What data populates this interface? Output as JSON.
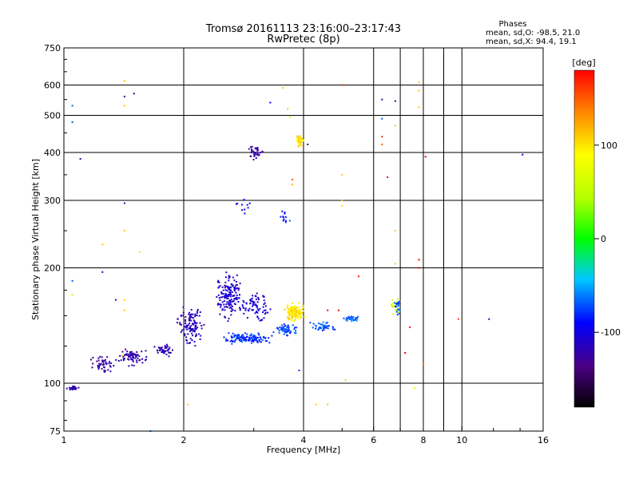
{
  "header": {
    "title": "Tromsø 20161113 23:16:00–23:17:43",
    "subtitle": "RwPretec (8p)",
    "phases_title": "Phases",
    "phases_o": "mean, sd,O:  -98.5, 21.0",
    "phases_x": "mean, sd,X:  94.4, 19.1"
  },
  "chart_data": {
    "type": "scatter",
    "title": "Tromsø 20161113 23:16:00–23:17:43",
    "subtitle": "RwPretec (8p)",
    "xlabel": "Frequency [MHz]",
    "ylabel": "Stationary phase Virtual Height [km]",
    "xscale": "log",
    "yscale": "log",
    "xlim": [
      1,
      16
    ],
    "ylim": [
      75,
      750
    ],
    "xticks": [
      1,
      2,
      4,
      6,
      8,
      10,
      16
    ],
    "xtick_labels": [
      "1",
      "2",
      "4",
      "6",
      "8",
      "10",
      "16"
    ],
    "yticks": [
      75,
      100,
      200,
      300,
      400,
      500,
      600,
      750
    ],
    "ytick_labels": [
      "75",
      "100",
      "200",
      "300",
      "400",
      "500",
      "600",
      "750"
    ],
    "grid": true,
    "colorbar": {
      "label": "[deg]",
      "range": [
        -180,
        180
      ],
      "ticks": [
        -100,
        0,
        100
      ],
      "tick_labels": [
        "-100",
        "0",
        "100"
      ]
    },
    "clusters": [
      {
        "x": 1.05,
        "y": 97,
        "dx": 0.05,
        "dy": 2,
        "phase": -120,
        "n": 25
      },
      {
        "x": 1.25,
        "y": 112,
        "dx": 0.1,
        "dy": 7,
        "phase": -125,
        "n": 45
      },
      {
        "x": 1.5,
        "y": 117,
        "dx": 0.15,
        "dy": 7,
        "phase": -120,
        "n": 70
      },
      {
        "x": 1.8,
        "y": 122,
        "dx": 0.15,
        "dy": 5,
        "phase": -118,
        "n": 40
      },
      {
        "x": 2.1,
        "y": 140,
        "dx": 0.2,
        "dy": 20,
        "phase": -115,
        "n": 110
      },
      {
        "x": 2.6,
        "y": 170,
        "dx": 0.25,
        "dy": 28,
        "phase": -110,
        "n": 160
      },
      {
        "x": 3.0,
        "y": 160,
        "dx": 0.35,
        "dy": 20,
        "phase": -105,
        "n": 80
      },
      {
        "x": 2.9,
        "y": 131,
        "dx": 0.5,
        "dy": 5,
        "phase": -80,
        "n": 130
      },
      {
        "x": 3.6,
        "y": 138,
        "dx": 0.3,
        "dy": 6,
        "phase": -75,
        "n": 60
      },
      {
        "x": 3.8,
        "y": 153,
        "dx": 0.25,
        "dy": 10,
        "phase": 100,
        "n": 140
      },
      {
        "x": 4.5,
        "y": 140,
        "dx": 0.45,
        "dy": 5,
        "phase": -70,
        "n": 45
      },
      {
        "x": 5.3,
        "y": 147,
        "dx": 0.3,
        "dy": 3,
        "phase": -65,
        "n": 30
      },
      {
        "x": 6.8,
        "y": 160,
        "dx": 0.2,
        "dy": 12,
        "phase": 60,
        "n": 25
      },
      {
        "x": 6.9,
        "y": 158,
        "dx": 0.2,
        "dy": 10,
        "phase": -70,
        "n": 20
      },
      {
        "x": 3.05,
        "y": 400,
        "dx": 0.18,
        "dy": 20,
        "phase": -125,
        "n": 40
      },
      {
        "x": 3.9,
        "y": 430,
        "dx": 0.12,
        "dy": 20,
        "phase": 100,
        "n": 40
      },
      {
        "x": 3.6,
        "y": 270,
        "dx": 0.15,
        "dy": 25,
        "phase": -85,
        "n": 12
      },
      {
        "x": 2.8,
        "y": 290,
        "dx": 0.2,
        "dy": 20,
        "phase": -95,
        "n": 10
      }
    ],
    "outliers": [
      {
        "x": 1.05,
        "y": 530,
        "phase": -70
      },
      {
        "x": 1.05,
        "y": 480,
        "phase": -70
      },
      {
        "x": 1.1,
        "y": 385,
        "phase": -120
      },
      {
        "x": 1.42,
        "y": 615,
        "phase": 110
      },
      {
        "x": 1.42,
        "y": 530,
        "phase": 110
      },
      {
        "x": 1.42,
        "y": 560,
        "phase": -115
      },
      {
        "x": 1.5,
        "y": 570,
        "phase": -120
      },
      {
        "x": 1.42,
        "y": 295,
        "phase": -120
      },
      {
        "x": 1.42,
        "y": 250,
        "phase": 110
      },
      {
        "x": 1.25,
        "y": 230,
        "phase": 110
      },
      {
        "x": 1.25,
        "y": 195,
        "phase": -100
      },
      {
        "x": 1.55,
        "y": 220,
        "phase": 50
      },
      {
        "x": 1.05,
        "y": 185,
        "phase": -70
      },
      {
        "x": 1.05,
        "y": 170,
        "phase": 50
      },
      {
        "x": 1.42,
        "y": 155,
        "phase": 110
      },
      {
        "x": 1.42,
        "y": 165,
        "phase": 110
      },
      {
        "x": 1.35,
        "y": 165,
        "phase": -110
      },
      {
        "x": 1.65,
        "y": 75,
        "phase": -60
      },
      {
        "x": 2.05,
        "y": 88,
        "phase": 110
      },
      {
        "x": 3.55,
        "y": 590,
        "phase": 110
      },
      {
        "x": 3.65,
        "y": 520,
        "phase": 110
      },
      {
        "x": 3.7,
        "y": 495,
        "phase": 100
      },
      {
        "x": 3.3,
        "y": 540,
        "phase": -90
      },
      {
        "x": 3.75,
        "y": 340,
        "phase": 150
      },
      {
        "x": 3.75,
        "y": 330,
        "phase": 120
      },
      {
        "x": 4.1,
        "y": 420,
        "phase": -140
      },
      {
        "x": 5.0,
        "y": 600,
        "phase": 170
      },
      {
        "x": 5.0,
        "y": 350,
        "phase": 110
      },
      {
        "x": 5.0,
        "y": 300,
        "phase": 110
      },
      {
        "x": 5.0,
        "y": 290,
        "phase": 100
      },
      {
        "x": 5.5,
        "y": 190,
        "phase": 180
      },
      {
        "x": 6.3,
        "y": 550,
        "phase": -120
      },
      {
        "x": 6.3,
        "y": 490,
        "phase": -70
      },
      {
        "x": 6.3,
        "y": 440,
        "phase": 170
      },
      {
        "x": 6.3,
        "y": 420,
        "phase": 150
      },
      {
        "x": 6.5,
        "y": 345,
        "phase": 180
      },
      {
        "x": 6.8,
        "y": 545,
        "phase": -120
      },
      {
        "x": 6.8,
        "y": 470,
        "phase": 110
      },
      {
        "x": 6.8,
        "y": 250,
        "phase": 110
      },
      {
        "x": 6.8,
        "y": 205,
        "phase": 110
      },
      {
        "x": 7.8,
        "y": 610,
        "phase": 110
      },
      {
        "x": 7.8,
        "y": 580,
        "phase": 110
      },
      {
        "x": 7.8,
        "y": 525,
        "phase": 110
      },
      {
        "x": 7.8,
        "y": 210,
        "phase": 180
      },
      {
        "x": 7.8,
        "y": 200,
        "phase": 180
      },
      {
        "x": 8.1,
        "y": 390,
        "phase": 180
      },
      {
        "x": 7.4,
        "y": 140,
        "phase": 180
      },
      {
        "x": 7.6,
        "y": 97,
        "phase": 60
      },
      {
        "x": 8.0,
        "y": 112,
        "phase": 140
      },
      {
        "x": 7.2,
        "y": 120,
        "phase": 180
      },
      {
        "x": 9.8,
        "y": 147,
        "phase": 160
      },
      {
        "x": 11.7,
        "y": 147,
        "phase": -100
      },
      {
        "x": 14.2,
        "y": 395,
        "phase": -100
      },
      {
        "x": 5.1,
        "y": 102,
        "phase": 110
      },
      {
        "x": 4.6,
        "y": 88,
        "phase": 110
      },
      {
        "x": 4.3,
        "y": 88,
        "phase": 110
      },
      {
        "x": 3.9,
        "y": 108,
        "phase": -80
      },
      {
        "x": 4.6,
        "y": 155,
        "phase": 180
      },
      {
        "x": 4.9,
        "y": 155,
        "phase": 180
      },
      {
        "x": 1.4,
        "y": 118,
        "phase": 110
      }
    ]
  }
}
